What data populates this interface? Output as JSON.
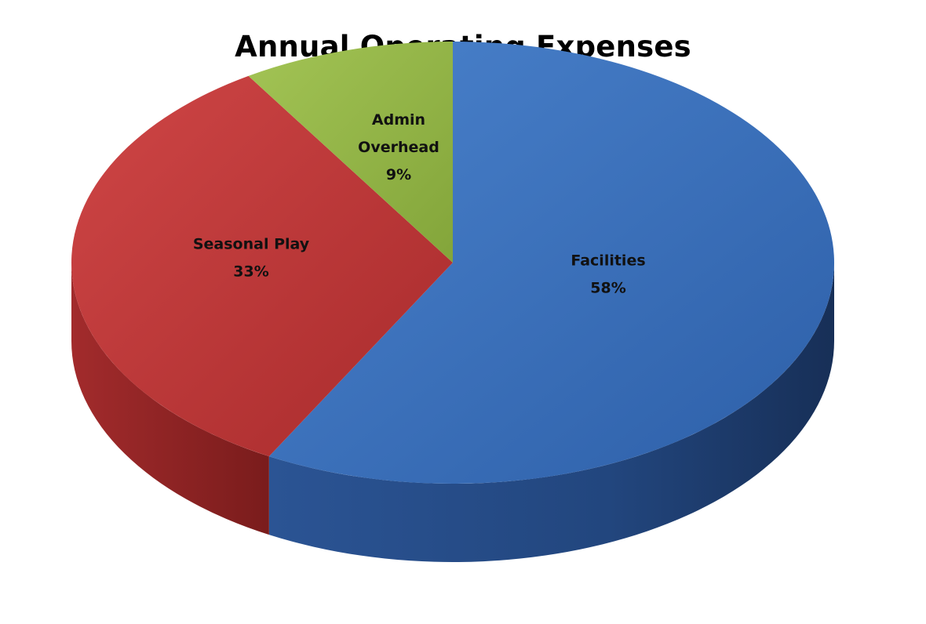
{
  "chart_data": {
    "type": "pie",
    "title": "Annual Operating Expenses",
    "style": "3d",
    "slices": [
      {
        "label": "Facilities",
        "value": 58,
        "value_label": "58%",
        "color": "#3d73bd"
      },
      {
        "label": "Seasonal Play",
        "value": 33,
        "value_label": "33%",
        "color": "#c0393a"
      },
      {
        "label": [
          "Admin",
          "Overhead"
        ],
        "value": 9,
        "value_label": "9%",
        "color": "#92b443"
      }
    ]
  }
}
